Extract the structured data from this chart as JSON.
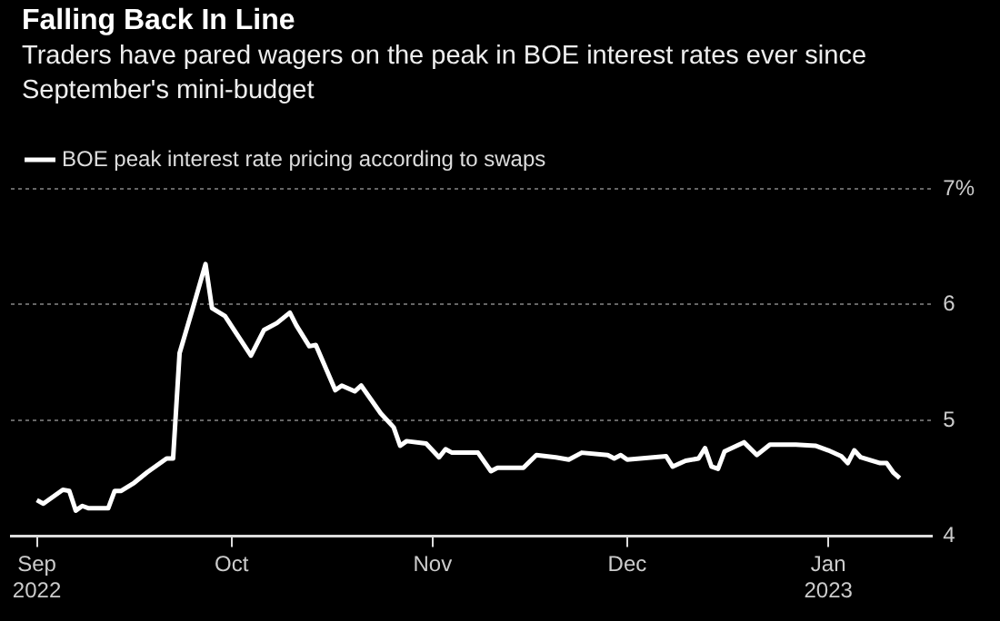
{
  "chart_data": {
    "type": "line",
    "title": "Falling Back In Line",
    "subtitle": "Traders have pared wagers on the peak in BOE interest rates ever since September's mini-budget",
    "x": [
      "2022-09-01",
      "2022-09-02",
      "2022-09-05",
      "2022-09-06",
      "2022-09-07",
      "2022-09-08",
      "2022-09-09",
      "2022-09-12",
      "2022-09-13",
      "2022-09-14",
      "2022-09-16",
      "2022-09-18",
      "2022-09-21",
      "2022-09-22",
      "2022-09-23",
      "2022-09-25",
      "2022-09-27",
      "2022-09-28",
      "2022-09-30",
      "2022-10-04",
      "2022-10-06",
      "2022-10-08",
      "2022-10-10",
      "2022-10-11",
      "2022-10-13",
      "2022-10-14",
      "2022-10-17",
      "2022-10-18",
      "2022-10-20",
      "2022-10-21",
      "2022-10-24",
      "2022-10-26",
      "2022-10-27",
      "2022-10-28",
      "2022-10-31",
      "2022-11-02",
      "2022-11-03",
      "2022-11-04",
      "2022-11-08",
      "2022-11-10",
      "2022-11-11",
      "2022-11-15",
      "2022-11-17",
      "2022-11-20",
      "2022-11-22",
      "2022-11-24",
      "2022-11-28",
      "2022-11-29",
      "2022-11-30",
      "2022-12-01",
      "2022-12-07",
      "2022-12-08",
      "2022-12-10",
      "2022-12-12",
      "2022-12-13",
      "2022-12-14",
      "2022-12-15",
      "2022-12-16",
      "2022-12-19",
      "2022-12-21",
      "2022-12-23",
      "2022-12-27",
      "2022-12-30",
      "2023-01-01",
      "2023-01-03",
      "2023-01-04",
      "2023-01-05",
      "2023-01-06",
      "2023-01-09",
      "2023-01-10",
      "2023-01-11",
      "2023-01-12"
    ],
    "series": [
      {
        "name": "BOE peak interest rate pricing according to swaps",
        "color": "#ffffff",
        "values": [
          4.31,
          4.28,
          4.4,
          4.39,
          4.22,
          4.26,
          4.24,
          4.24,
          4.39,
          4.39,
          4.46,
          4.55,
          4.67,
          4.67,
          5.58,
          5.96,
          6.35,
          5.97,
          5.9,
          5.56,
          5.78,
          5.84,
          5.93,
          5.82,
          5.64,
          5.65,
          5.26,
          5.3,
          5.25,
          5.3,
          5.06,
          4.94,
          4.78,
          4.82,
          4.8,
          4.68,
          4.75,
          4.72,
          4.72,
          4.56,
          4.59,
          4.59,
          4.7,
          4.68,
          4.66,
          4.72,
          4.7,
          4.67,
          4.7,
          4.66,
          4.69,
          4.6,
          4.65,
          4.67,
          4.76,
          4.6,
          4.58,
          4.73,
          4.81,
          4.7,
          4.79,
          4.79,
          4.78,
          4.74,
          4.69,
          4.63,
          4.74,
          4.68,
          4.63,
          4.63,
          4.55,
          4.5
        ]
      }
    ],
    "xlim": [
      "2022-08-28",
      "2023-01-17"
    ],
    "xticks": [
      {
        "value": "2022-09-01",
        "label": "Sep\n2022"
      },
      {
        "value": "2022-10-01",
        "label": "Oct"
      },
      {
        "value": "2022-11-01",
        "label": "Nov"
      },
      {
        "value": "2022-12-01",
        "label": "Dec"
      },
      {
        "value": "2023-01-01",
        "label": "Jan\n2023"
      }
    ],
    "ylim": [
      4,
      7
    ],
    "yticks": [
      4,
      5,
      6,
      {
        "value": 7,
        "label": "7%"
      }
    ],
    "grid": "y",
    "legend": "top left"
  }
}
